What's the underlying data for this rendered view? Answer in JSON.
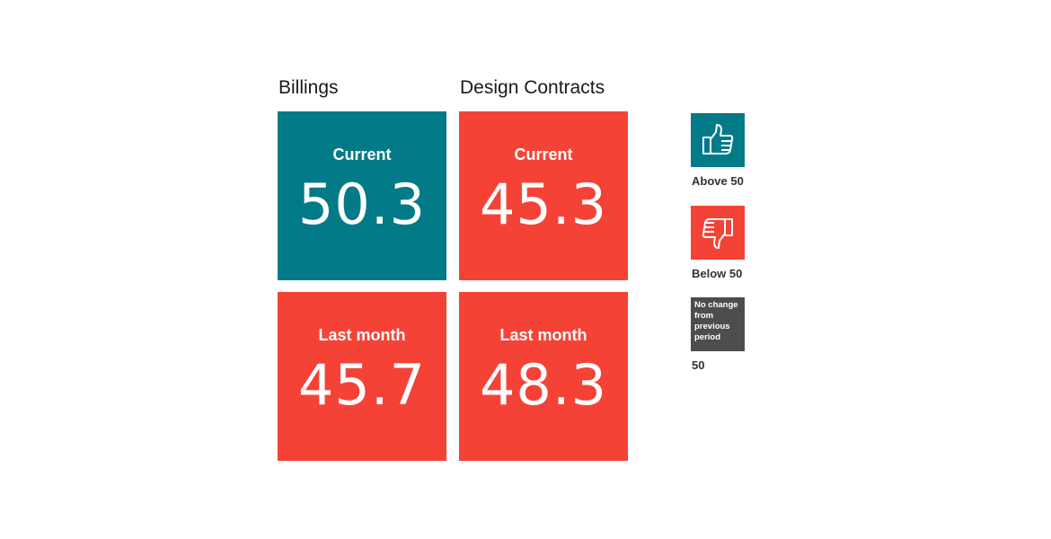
{
  "chart_data": {
    "type": "table",
    "columns": [
      "Billings",
      "Design Contracts"
    ],
    "rows": [
      "Current",
      "Last month"
    ],
    "values": [
      [
        50.3,
        45.3
      ],
      [
        45.7,
        48.3
      ]
    ],
    "cells": {
      "billings_current": {
        "label": "Current",
        "value": "50.3",
        "status": "above"
      },
      "design_current": {
        "label": "Current",
        "value": "45.3",
        "status": "below"
      },
      "billings_last": {
        "label": "Last month",
        "value": "45.7",
        "status": "below"
      },
      "design_last": {
        "label": "Last month",
        "value": "48.3",
        "status": "below"
      }
    },
    "threshold": 50
  },
  "legend": {
    "above": {
      "label": "Above 50",
      "icon": "thumbs-up-icon"
    },
    "below": {
      "label": "Below 50",
      "icon": "thumbs-down-icon"
    },
    "neutral": {
      "lines": [
        "No change",
        "from",
        "previous",
        "period"
      ],
      "label": "50"
    }
  },
  "colors": {
    "above": "#037a87",
    "below": "#f44336",
    "neutral": "#4d4d4d"
  }
}
